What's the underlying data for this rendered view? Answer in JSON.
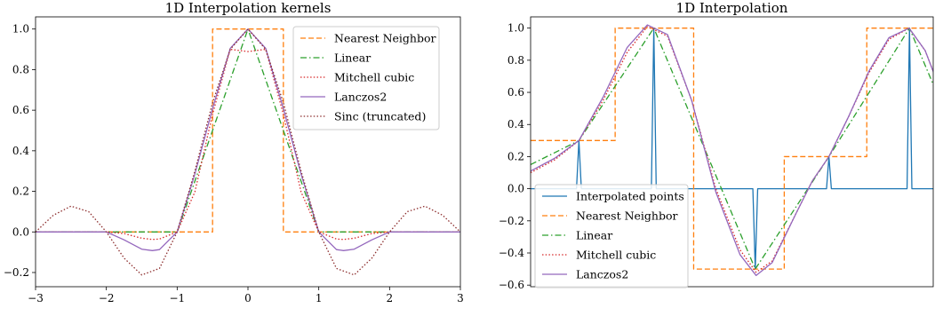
{
  "chart_data": [
    {
      "type": "line",
      "title": "1D Interpolation kernels",
      "xlabel": "",
      "ylabel": "",
      "xlim": [
        -3.0,
        3.0
      ],
      "ylim": [
        -0.27,
        1.06
      ],
      "x_ticks": [
        -3,
        -2,
        -1,
        0,
        1,
        2,
        3
      ],
      "x_tick_labels": [
        "−3",
        "−2",
        "−1",
        "0",
        "1",
        "2",
        "3"
      ],
      "y_ticks": [
        -0.2,
        0.0,
        0.2,
        0.4,
        0.6,
        0.8,
        1.0
      ],
      "y_tick_labels": [
        "−0.2",
        "0.0",
        "0.2",
        "0.4",
        "0.6",
        "0.8",
        "1.0"
      ],
      "legend_position": "top-right",
      "series": [
        {
          "name": "Nearest Neighbor",
          "color": "#ff7f0e",
          "dash": "dashed",
          "x": [
            -3,
            -0.5,
            -0.5,
            0.5,
            0.5,
            3
          ],
          "y": [
            0,
            0,
            1,
            1,
            0,
            0
          ]
        },
        {
          "name": "Linear",
          "color": "#2ca02c",
          "dash": "dashdot",
          "x": [
            -3,
            -1,
            0,
            1,
            3
          ],
          "y": [
            0,
            0,
            1,
            0,
            0
          ]
        },
        {
          "name": "Mitchell cubic",
          "color": "#d62728",
          "dash": "dotted",
          "x": [
            -3,
            -2,
            -1.75,
            -1.5,
            -1.35,
            -1.25,
            -1.0,
            -0.75,
            -0.5,
            -0.25,
            0,
            0.25,
            0.5,
            0.75,
            1.0,
            1.25,
            1.35,
            1.5,
            1.75,
            2,
            3
          ],
          "y": [
            0,
            0,
            -0.008,
            -0.031,
            -0.037,
            -0.035,
            0,
            0.197,
            0.58,
            0.9,
            0.889,
            0.9,
            0.58,
            0.197,
            0,
            -0.035,
            -0.037,
            -0.031,
            -0.008,
            0,
            0
          ]
        },
        {
          "name": "Lanczos2",
          "color": "#9467bd",
          "dash": "solid",
          "x": [
            -3,
            -2,
            -1.75,
            -1.5,
            -1.35,
            -1.25,
            -1.0,
            -0.75,
            -0.5,
            -0.25,
            0,
            0.25,
            0.5,
            0.75,
            1.0,
            1.25,
            1.35,
            1.5,
            1.75,
            2,
            3
          ],
          "y": [
            0,
            0,
            -0.039,
            -0.085,
            -0.092,
            -0.087,
            0,
            0.285,
            0.608,
            0.905,
            1.0,
            0.905,
            0.608,
            0.285,
            0,
            -0.087,
            -0.092,
            -0.085,
            -0.039,
            0,
            0
          ]
        },
        {
          "name": "Sinc (truncated)",
          "color": "#8c2d2d",
          "dash": "dotted",
          "x": [
            -3,
            -2.75,
            -2.5,
            -2.25,
            -2,
            -1.75,
            -1.5,
            -1.25,
            -1,
            -0.75,
            -0.5,
            -0.25,
            0,
            0.25,
            0.5,
            0.75,
            1,
            1.25,
            1.5,
            1.75,
            2,
            2.25,
            2.5,
            2.75,
            3
          ],
          "y": [
            0,
            0.082,
            0.127,
            0.1,
            0,
            -0.129,
            -0.212,
            -0.18,
            0,
            0.3,
            0.637,
            0.9,
            1.0,
            0.9,
            0.637,
            0.3,
            0,
            -0.18,
            -0.212,
            -0.129,
            0,
            0.1,
            0.127,
            0.082,
            0
          ]
        }
      ]
    },
    {
      "type": "line",
      "title": "1D Interpolation",
      "xlabel": "",
      "ylabel": "",
      "xlim": [
        0,
        10
      ],
      "ylim": [
        -0.61,
        1.07
      ],
      "x_ticks": [],
      "x_tick_labels": [],
      "y_ticks": [
        -0.6,
        -0.4,
        -0.2,
        0.0,
        0.2,
        0.4,
        0.6,
        0.8,
        1.0
      ],
      "y_tick_labels": [
        "−0.6",
        "−0.4",
        "−0.2",
        "0.0",
        "0.2",
        "0.4",
        "0.6",
        "0.8",
        "1.0"
      ],
      "legend_position": "bottom-left",
      "series": [
        {
          "name": "Interpolated points",
          "color": "#1f77b4",
          "dash": "solid",
          "x": [
            0,
            1.14,
            1.14,
            1.2,
            1.26,
            1.26,
            3.0,
            3.0,
            3.06,
            3.12,
            3.12,
            5.52,
            5.52,
            5.58,
            5.64,
            5.64,
            7.35,
            7.35,
            7.41,
            7.47,
            7.47,
            9.35,
            9.35,
            9.41,
            9.47,
            9.47,
            10.2
          ],
          "y": [
            0,
            0,
            0,
            0.3,
            0,
            0,
            0,
            0,
            1.0,
            0,
            0,
            0,
            0,
            -0.5,
            0,
            0,
            0,
            0,
            0.2,
            0,
            0,
            0,
            0,
            1.0,
            0,
            0,
            0
          ]
        },
        {
          "name": "Nearest Neighbor",
          "color": "#ff7f0e",
          "dash": "dashed",
          "x": [
            0,
            2.1,
            2.1,
            4.05,
            4.05,
            6.3,
            6.3,
            8.35,
            8.35,
            10.2
          ],
          "y": [
            0.3,
            0.3,
            1.0,
            1.0,
            -0.5,
            -0.5,
            0.2,
            0.2,
            1.0,
            1.0
          ]
        },
        {
          "name": "Linear",
          "color": "#2ca02c",
          "dash": "dashdot",
          "x": [
            0,
            1.2,
            3.06,
            5.58,
            7.41,
            9.41,
            10.2
          ],
          "y": [
            0.15,
            0.3,
            1.0,
            -0.5,
            0.2,
            1.0,
            0.53
          ]
        },
        {
          "name": "Mitchell cubic",
          "color": "#d62728",
          "dash": "dotted",
          "x": [
            0,
            0.6,
            1.2,
            1.8,
            2.4,
            2.9,
            3.4,
            4.0,
            4.6,
            5.2,
            5.6,
            6.0,
            6.6,
            7.0,
            7.41,
            7.9,
            8.4,
            8.9,
            9.4,
            9.8,
            10.2
          ],
          "y": [
            0.1,
            0.18,
            0.3,
            0.55,
            0.85,
            1.01,
            0.95,
            0.55,
            0.0,
            -0.38,
            -0.52,
            -0.45,
            -0.15,
            0.05,
            0.2,
            0.45,
            0.72,
            0.93,
            1.0,
            0.86,
            0.6
          ]
        },
        {
          "name": "Lanczos2",
          "color": "#9467bd",
          "dash": "solid",
          "x": [
            0,
            0.6,
            1.2,
            1.8,
            2.4,
            2.9,
            3.4,
            4.0,
            4.6,
            5.2,
            5.6,
            6.0,
            6.6,
            7.0,
            7.41,
            7.9,
            8.4,
            8.9,
            9.4,
            9.8,
            10.2
          ],
          "y": [
            0.11,
            0.19,
            0.3,
            0.57,
            0.88,
            1.02,
            0.96,
            0.55,
            -0.02,
            -0.41,
            -0.54,
            -0.46,
            -0.15,
            0.05,
            0.2,
            0.45,
            0.73,
            0.94,
            1.0,
            0.86,
            0.6
          ]
        }
      ]
    }
  ]
}
